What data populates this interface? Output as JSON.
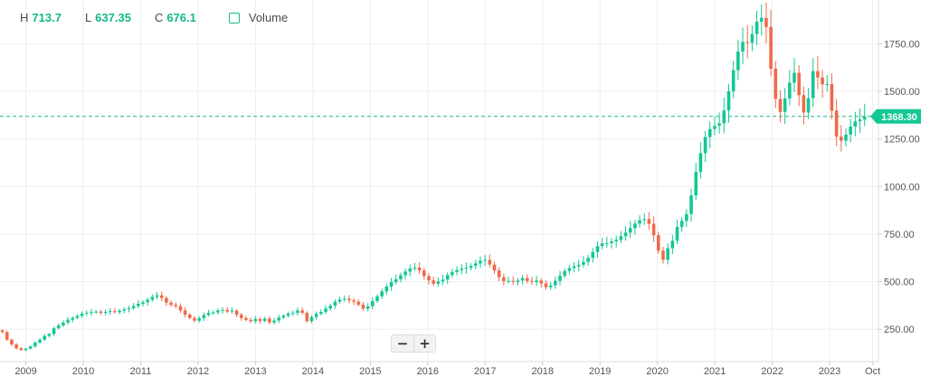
{
  "header": {
    "high_key": "H",
    "high": "713.7",
    "low_key": "L",
    "low": "637.35",
    "close_key": "C",
    "close": "676.1",
    "volume_label": "Volume"
  },
  "zoom": {
    "minus": "−",
    "plus": "+"
  },
  "colors": {
    "up": "#14c795",
    "down": "#ef6a4a",
    "grid": "#eeeeee",
    "accent": "#14b88a",
    "axis_text": "#555555"
  },
  "chart_data": {
    "type": "candlestick",
    "ylim": [
      80,
      1980
    ],
    "x_range": [
      2008.55,
      2023.85
    ],
    "grid": true,
    "yticks": [
      {
        "value": 250,
        "label": "250.00"
      },
      {
        "value": 500,
        "label": "500.00"
      },
      {
        "value": 750,
        "label": "750.00"
      },
      {
        "value": 1000,
        "label": "1000.00"
      },
      {
        "value": 1250,
        "label": "1250.00"
      },
      {
        "value": 1500,
        "label": "1500.00"
      },
      {
        "value": 1750,
        "label": "1750.00"
      }
    ],
    "xticks": [
      {
        "value": 2009,
        "label": "2009"
      },
      {
        "value": 2010,
        "label": "2010"
      },
      {
        "value": 2011,
        "label": "2011"
      },
      {
        "value": 2012,
        "label": "2012"
      },
      {
        "value": 2013,
        "label": "2013"
      },
      {
        "value": 2014,
        "label": "2014"
      },
      {
        "value": 2015,
        "label": "2015"
      },
      {
        "value": 2016,
        "label": "2016"
      },
      {
        "value": 2017,
        "label": "2017"
      },
      {
        "value": 2018,
        "label": "2018"
      },
      {
        "value": 2019,
        "label": "2019"
      },
      {
        "value": 2020,
        "label": "2020"
      },
      {
        "value": 2021,
        "label": "2021"
      },
      {
        "value": 2022,
        "label": "2022"
      },
      {
        "value": 2023,
        "label": "2023"
      },
      {
        "value": 2023.75,
        "label": "Oct"
      }
    ],
    "last_price": {
      "value": 1368.3,
      "label": "1368.30"
    },
    "closes": [
      235,
      195,
      170,
      150,
      140,
      148,
      160,
      180,
      195,
      215,
      225,
      255,
      270,
      285,
      300,
      310,
      320,
      332,
      336,
      340,
      343,
      336,
      341,
      345,
      340,
      348,
      355,
      360,
      372,
      384,
      392,
      405,
      420,
      428,
      414,
      390,
      378,
      371,
      349,
      327,
      309,
      295,
      308,
      325,
      336,
      339,
      349,
      352,
      343,
      348,
      326,
      309,
      299,
      292,
      304,
      294,
      306,
      286,
      296,
      311,
      321,
      332,
      336,
      349,
      336,
      293,
      314,
      331,
      341,
      359,
      374,
      395,
      406,
      410,
      402,
      395,
      379,
      358,
      371,
      398,
      423,
      449,
      474,
      498,
      513,
      534,
      553,
      569,
      574,
      559,
      529,
      507,
      489,
      501,
      511,
      535,
      551,
      561,
      568,
      573,
      583,
      596,
      610,
      614,
      590,
      559,
      523,
      503,
      504,
      499,
      506,
      519,
      503,
      498,
      506,
      491,
      471,
      481,
      504,
      531,
      556,
      572,
      581,
      589,
      604,
      625,
      656,
      687,
      701,
      702,
      712,
      720,
      739,
      758,
      781,
      805,
      823,
      829,
      804,
      744,
      663,
      615,
      676,
      715,
      788,
      819,
      855,
      953,
      1077,
      1175,
      1260,
      1302,
      1319,
      1332,
      1400,
      1501,
      1611,
      1709,
      1760,
      1755,
      1801,
      1866,
      1886,
      1838,
      1619,
      1460,
      1392,
      1463,
      1545,
      1597,
      1480,
      1389,
      1464,
      1606,
      1573,
      1537,
      1538,
      1399,
      1262,
      1241,
      1273,
      1315,
      1343,
      1352,
      1368
    ]
  }
}
